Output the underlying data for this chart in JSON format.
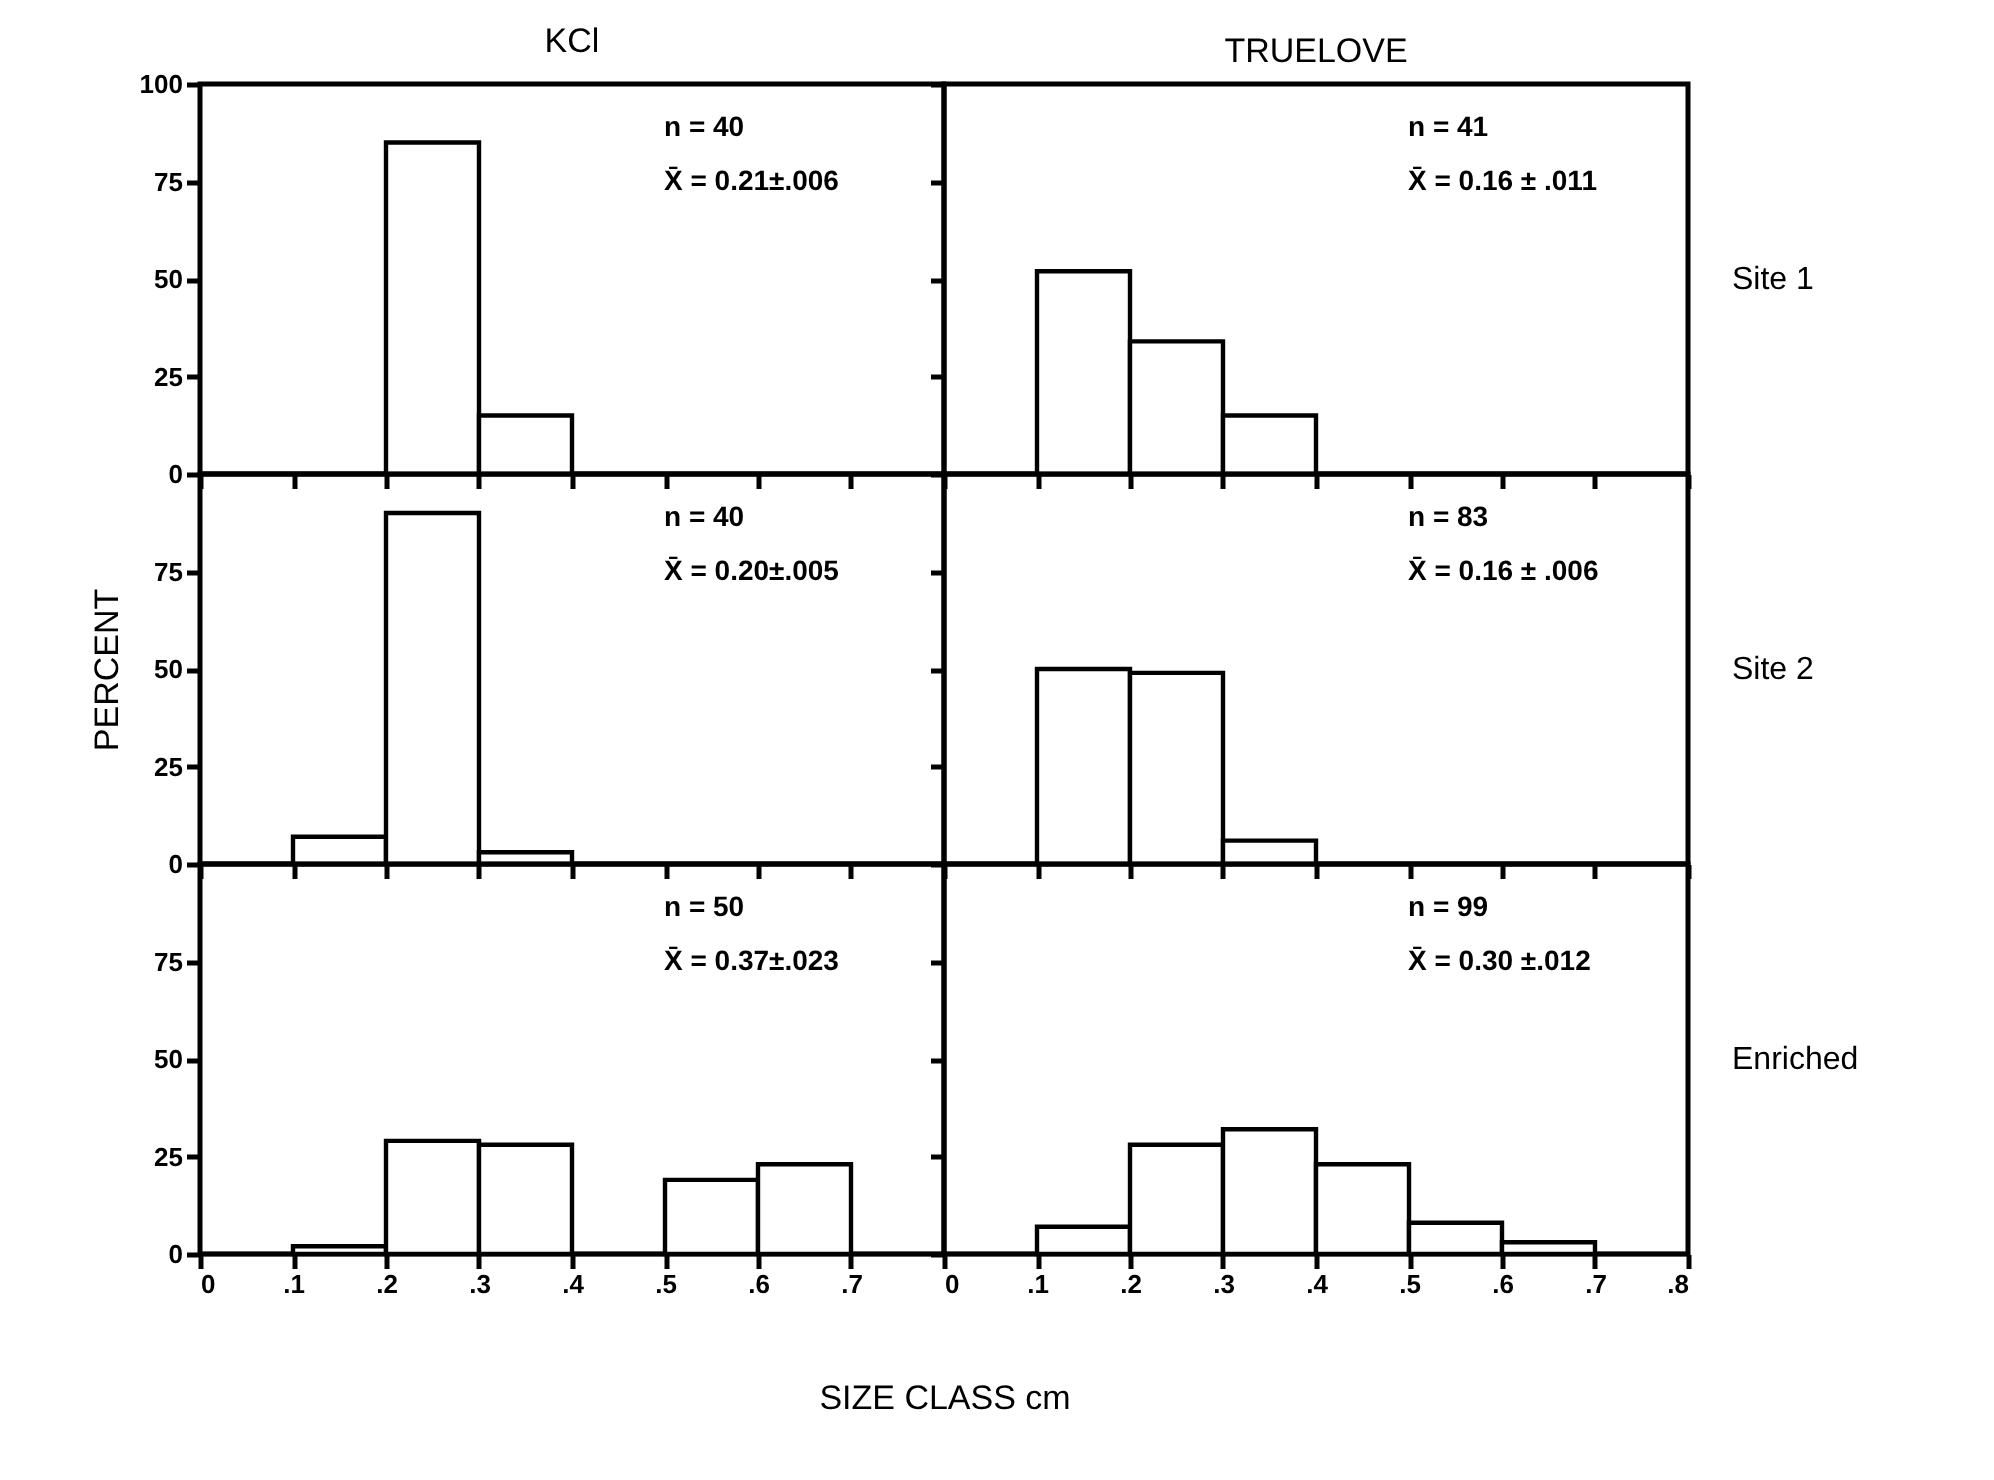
{
  "chart_data": [
    {
      "type": "histogram",
      "title": "KCl",
      "bins": [
        0,
        0.1,
        0.2,
        0.3,
        0.4,
        0.5,
        0.6,
        0.7,
        0.8
      ],
      "values": [
        0,
        0,
        85,
        15,
        0,
        0,
        0,
        0
      ],
      "color": "#000000",
      "xlim": [
        0,
        0.8
      ],
      "ylim": [
        0,
        100
      ],
      "xticks": [
        0,
        0.1,
        0.2,
        0.3,
        0.4,
        0.5,
        0.6,
        0.7
      ],
      "yticks": [
        0,
        25,
        50,
        75,
        100
      ],
      "tick_labels": "y",
      "annotations": [
        "n = 40",
        "X̄ = 0.21±.006"
      ]
    },
    {
      "type": "histogram",
      "title": "TRUELOVE",
      "y2label": "Site 1",
      "bins": [
        0,
        0.1,
        0.2,
        0.3,
        0.4,
        0.5,
        0.6,
        0.7,
        0.8
      ],
      "values": [
        0,
        52,
        34,
        15,
        0,
        0,
        0,
        0
      ],
      "color": "#000000",
      "xlim": [
        0,
        0.8
      ],
      "ylim": [
        0,
        100
      ],
      "xticks": [
        0,
        0.1,
        0.2,
        0.3,
        0.4,
        0.5,
        0.6,
        0.7,
        0.8
      ],
      "yticks": [
        0,
        25,
        50,
        75,
        100
      ],
      "tick_labels": false,
      "annotations": [
        "n = 41",
        "X̄ = 0.16 ± .011"
      ]
    },
    {
      "type": "histogram",
      "ylabel": "PERCENT",
      "bins": [
        0,
        0.1,
        0.2,
        0.3,
        0.4,
        0.5,
        0.6,
        0.7,
        0.8
      ],
      "values": [
        0,
        7,
        90,
        3,
        0,
        0,
        0,
        0
      ],
      "color": "#000000",
      "xlim": [
        0,
        0.8
      ],
      "ylim": [
        0,
        100
      ],
      "xticks": [
        0,
        0.1,
        0.2,
        0.3,
        0.4,
        0.5,
        0.6,
        0.7
      ],
      "yticks": [
        0,
        25,
        50,
        75
      ],
      "tick_labels": "y",
      "annotations": [
        "n = 40",
        "X̄ = 0.20±.005"
      ]
    },
    {
      "type": "histogram",
      "y2label": "Site 2",
      "bins": [
        0,
        0.1,
        0.2,
        0.3,
        0.4,
        0.5,
        0.6,
        0.7,
        0.8
      ],
      "values": [
        0,
        50,
        49,
        6,
        0,
        0,
        0,
        0
      ],
      "color": "#000000",
      "xlim": [
        0,
        0.8
      ],
      "ylim": [
        0,
        100
      ],
      "xticks": [
        0,
        0.1,
        0.2,
        0.3,
        0.4,
        0.5,
        0.6,
        0.7,
        0.8
      ],
      "yticks": [
        0,
        25,
        50,
        75
      ],
      "tick_labels": false,
      "annotations": [
        "n = 83",
        "X̄ = 0.16 ± .006"
      ]
    },
    {
      "type": "histogram",
      "xlabel": "SIZE CLASS     cm",
      "bins": [
        0,
        0.1,
        0.2,
        0.3,
        0.4,
        0.5,
        0.6,
        0.7,
        0.8
      ],
      "values": [
        0,
        2,
        29,
        28,
        0,
        19,
        23,
        0
      ],
      "color": "#000000",
      "xlim": [
        0,
        0.8
      ],
      "ylim": [
        0,
        100
      ],
      "xticks": [
        0,
        {
          "value": 0.1,
          "label": ".1"
        },
        {
          "value": 0.2,
          "label": ".2"
        },
        {
          "value": 0.3,
          "label": ".3"
        },
        {
          "value": 0.4,
          "label": ".4"
        },
        {
          "value": 0.5,
          "label": ".5"
        },
        {
          "value": 0.6,
          "label": ".6"
        },
        {
          "value": 0.7,
          "label": ".7"
        }
      ],
      "yticks": [
        0,
        25,
        50,
        75
      ],
      "annotations": [
        "n = 50",
        "X̄ = 0.37±.023"
      ]
    },
    {
      "type": "histogram",
      "y2label": "Enriched",
      "bins": [
        0,
        0.1,
        0.2,
        0.3,
        0.4,
        0.5,
        0.6,
        0.7,
        0.8
      ],
      "values": [
        0,
        7,
        28,
        32,
        23,
        8,
        3,
        0
      ],
      "color": "#000000",
      "xlim": [
        0,
        0.8
      ],
      "ylim": [
        0,
        100
      ],
      "xticks": [
        0,
        {
          "value": 0.1,
          "label": ".1"
        },
        {
          "value": 0.2,
          "label": ".2"
        },
        {
          "value": 0.3,
          "label": ".3"
        },
        {
          "value": 0.4,
          "label": ".4"
        },
        {
          "value": 0.5,
          "label": ".5"
        },
        {
          "value": 0.6,
          "label": ".6"
        },
        {
          "value": 0.7,
          "label": ".7"
        },
        {
          "value": 0.8,
          "label": ".8"
        }
      ],
      "yticks": [
        0,
        25,
        50,
        75
      ],
      "tick_labels": "x",
      "annotations": [
        "n = 99",
        "X̄ = 0.30 ±.012"
      ]
    }
  ]
}
